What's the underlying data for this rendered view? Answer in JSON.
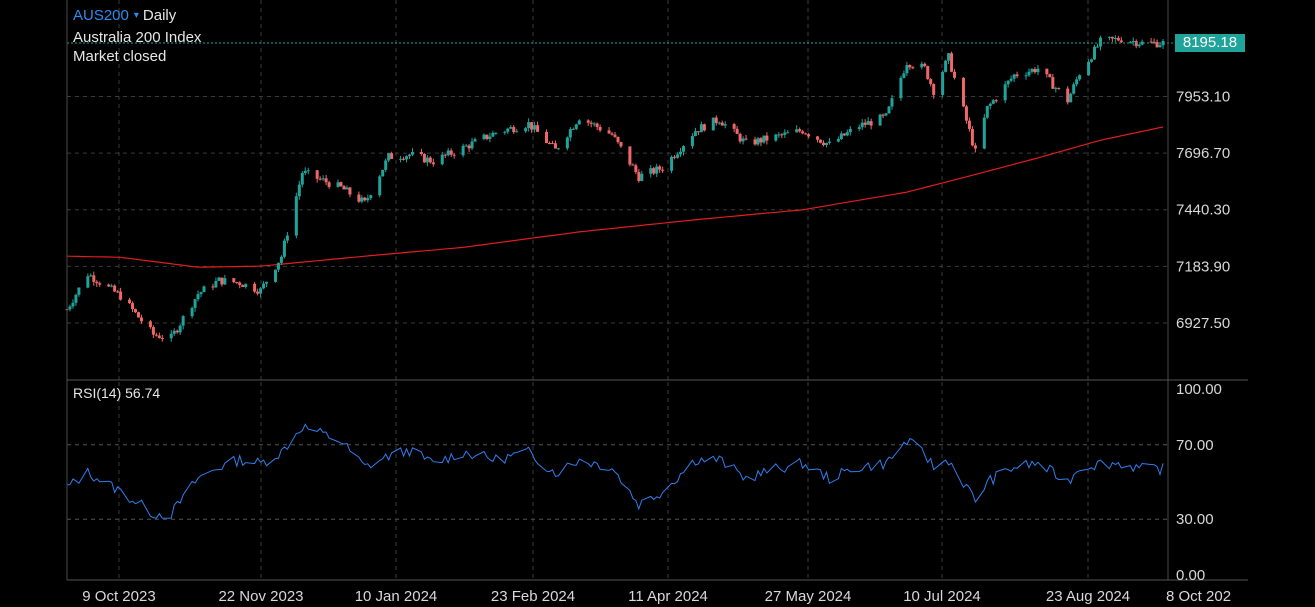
{
  "header": {
    "symbol": "AUS200",
    "caret": "▾",
    "timeframe": "Daily",
    "instrument_name": "Australia 200 Index",
    "market_status": "Market closed"
  },
  "colors": {
    "background": "#000000",
    "grid": "#3a3a3a",
    "up_candle": "#1fa39a",
    "down_candle": "#f06767",
    "moving_average": "#e01e1e",
    "rsi_line": "#2f7ff0",
    "price_tag": "#1fa39a",
    "symbol_text": "#2e8cf0"
  },
  "chart_data": [
    {
      "type": "candlestick",
      "name": "price",
      "last_price": "8195.18",
      "ylim": [
        6800,
        8320
      ],
      "y_ticks": [
        "8195.18",
        "7953.10",
        "7696.70",
        "7440.30",
        "7183.90",
        "6927.50"
      ],
      "y_tick_values": [
        8195.18,
        7953.1,
        7696.7,
        7440.3,
        7183.9,
        6927.5
      ],
      "x_ticks": [
        "9 Oct 2023",
        "22 Nov 2023",
        "10 Jan 2024",
        "23 Feb 2024",
        "11 Apr 2024",
        "27 May 2024",
        "10 Jul 2024",
        "23 Aug 2024",
        "8 Oct 202"
      ],
      "grid": true,
      "close_path_dates": [
        "2023-10-02",
        "2023-10-09",
        "2023-10-20",
        "2023-10-31",
        "2023-11-06",
        "2023-11-15",
        "2023-11-22",
        "2023-11-29",
        "2023-12-06",
        "2023-12-13",
        "2023-12-20",
        "2024-01-02",
        "2024-01-10",
        "2024-01-18",
        "2024-01-25",
        "2024-02-02",
        "2024-02-12",
        "2024-02-23",
        "2024-03-05",
        "2024-03-14",
        "2024-03-22",
        "2024-04-02",
        "2024-04-11",
        "2024-04-19",
        "2024-04-30",
        "2024-05-08",
        "2024-05-17",
        "2024-05-27",
        "2024-06-05",
        "2024-06-14",
        "2024-06-24",
        "2024-07-03",
        "2024-07-10",
        "2024-07-16",
        "2024-07-19",
        "2024-07-24",
        "2024-08-02",
        "2024-08-06",
        "2024-08-15",
        "2024-08-23",
        "2024-09-02",
        "2024-09-06",
        "2024-09-13",
        "2024-09-20",
        "2024-09-27",
        "2024-10-04"
      ],
      "close_path_values": [
        6990,
        7150,
        7050,
        6875,
        6860,
        7060,
        7120,
        7110,
        7075,
        7230,
        7610,
        7540,
        7470,
        7680,
        7690,
        7660,
        7720,
        7790,
        7830,
        7710,
        7860,
        7780,
        7590,
        7630,
        7800,
        7850,
        7740,
        7770,
        7800,
        7735,
        7820,
        7860,
        8110,
        8080,
        7980,
        8130,
        7700,
        7900,
        8050,
        8080,
        7935,
        8060,
        8200,
        8215,
        8195,
        8195
      ],
      "moving_average_dates": [
        "2023-10-02",
        "2023-10-20",
        "2023-11-15",
        "2023-12-06",
        "2024-01-10",
        "2024-02-12",
        "2024-03-22",
        "2024-04-30",
        "2024-06-05",
        "2024-07-10",
        "2024-08-02",
        "2024-08-23",
        "2024-09-13",
        "2024-10-04"
      ],
      "moving_average_values": [
        7230,
        7225,
        7180,
        7185,
        7230,
        7270,
        7340,
        7395,
        7440,
        7520,
        7600,
        7675,
        7755,
        7815
      ]
    },
    {
      "type": "line",
      "name": "RSI(14)",
      "label": "RSI(14)",
      "current_value": "56.74",
      "ylim": [
        0,
        100
      ],
      "y_ticks": [
        "100.00",
        "70.00",
        "30.00",
        "0.00"
      ],
      "y_tick_values": [
        100,
        70,
        30,
        0
      ],
      "dates": [
        "2023-10-02",
        "2023-10-09",
        "2023-10-20",
        "2023-10-31",
        "2023-11-06",
        "2023-11-15",
        "2023-11-22",
        "2023-11-29",
        "2023-12-06",
        "2023-12-13",
        "2023-12-20",
        "2024-01-02",
        "2024-01-10",
        "2024-01-18",
        "2024-01-25",
        "2024-02-02",
        "2024-02-12",
        "2024-02-23",
        "2024-03-05",
        "2024-03-14",
        "2024-03-22",
        "2024-04-02",
        "2024-04-11",
        "2024-04-19",
        "2024-04-30",
        "2024-05-08",
        "2024-05-17",
        "2024-05-27",
        "2024-06-05",
        "2024-06-14",
        "2024-06-24",
        "2024-07-03",
        "2024-07-10",
        "2024-07-16",
        "2024-07-19",
        "2024-07-24",
        "2024-08-02",
        "2024-08-06",
        "2024-08-15",
        "2024-08-23",
        "2024-09-02",
        "2024-09-06",
        "2024-09-13",
        "2024-09-20",
        "2024-09-27",
        "2024-10-04"
      ],
      "values": [
        47,
        55,
        45,
        33,
        33,
        52,
        58,
        62,
        60,
        66,
        80,
        72,
        58,
        64,
        67,
        60,
        66,
        62,
        66,
        55,
        62,
        58,
        38,
        45,
        62,
        62,
        52,
        57,
        60,
        52,
        58,
        60,
        72,
        65,
        58,
        62,
        40,
        50,
        58,
        60,
        50,
        58,
        60,
        60,
        57,
        57
      ]
    }
  ]
}
